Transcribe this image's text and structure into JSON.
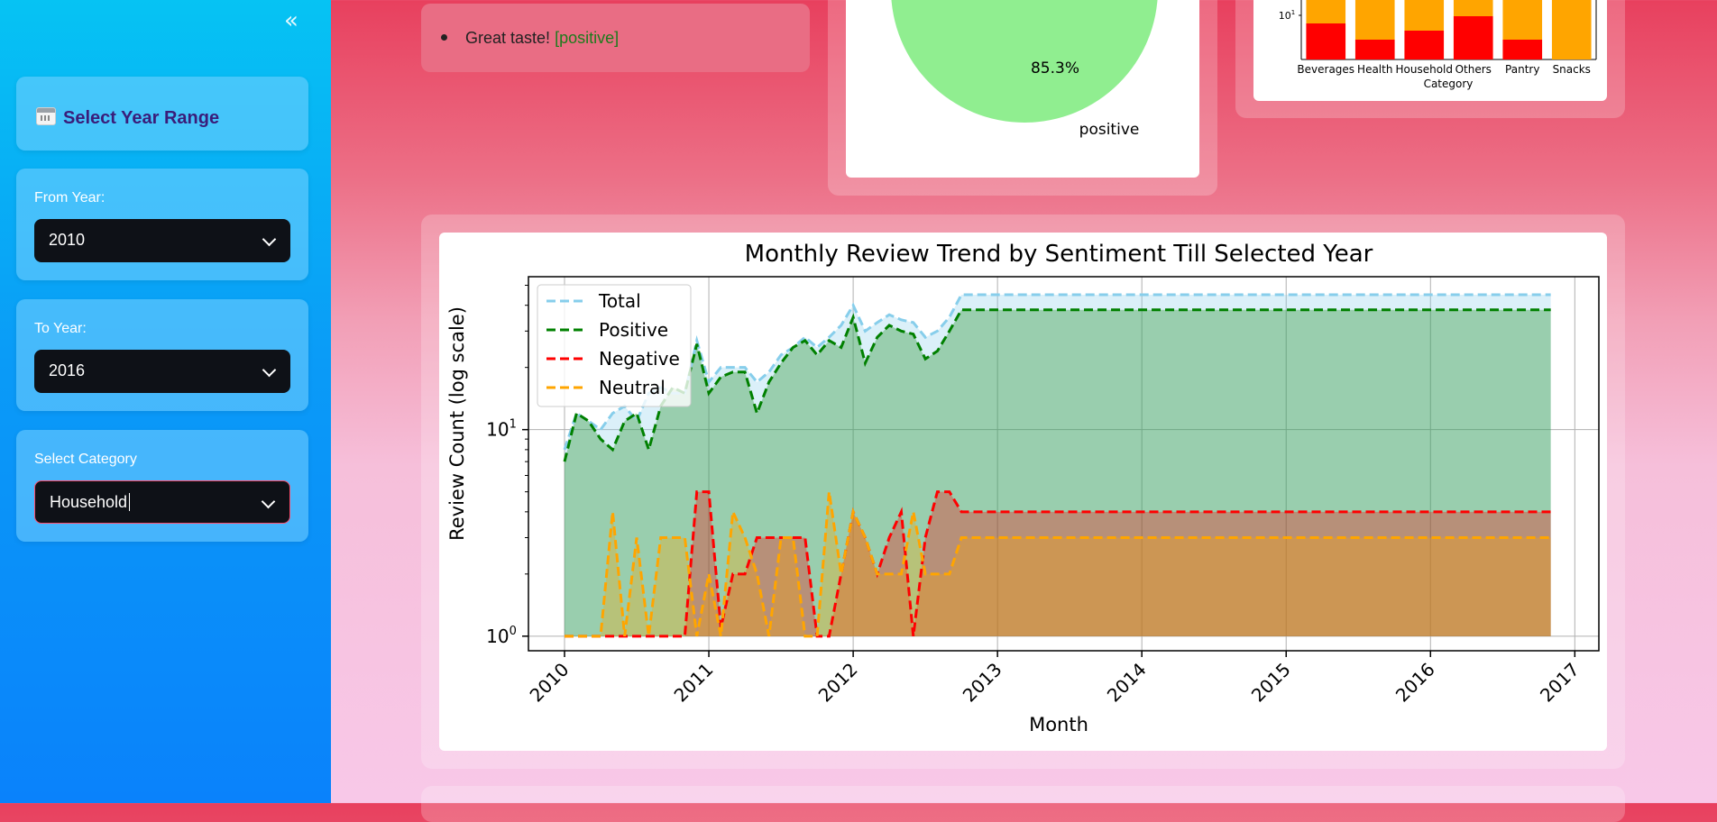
{
  "sidebar": {
    "collapse_icon": "double-chevron-left-icon",
    "section_title": "Select Year Range",
    "section_icon": "calendar-icon",
    "from_year": {
      "label": "From Year:",
      "value": "2010"
    },
    "to_year": {
      "label": "To Year:",
      "value": "2016"
    },
    "category": {
      "label": "Select Category",
      "value": "Household"
    }
  },
  "reviews": [
    {
      "text": "Great taste!",
      "sentiment": "[positive]"
    }
  ],
  "pie_partial": {
    "pct_label": "85.3%",
    "slice_label": "positive",
    "color": "#90ee90"
  },
  "bar_partial": {
    "categories": [
      "Beverages",
      "Health",
      "Household",
      "Others",
      "Pantry",
      "Snacks"
    ],
    "xlabel": "Category",
    "ytick": "10",
    "ytick_exp": "1"
  },
  "chart_data": {
    "type": "area",
    "title": "Monthly Review Trend by Sentiment Till Selected Year",
    "xlabel": "Month",
    "ylabel": "Review Count (log scale)",
    "yscale": "log",
    "ylim": [
      0.85,
      55
    ],
    "xlim": [
      "2009-10",
      "2017-03"
    ],
    "yticks": [
      {
        "base": "10",
        "exp": "0",
        "value": 1
      },
      {
        "base": "10",
        "exp": "1",
        "value": 10
      }
    ],
    "xticks": [
      "2010",
      "2011",
      "2012",
      "2013",
      "2014",
      "2015",
      "2016",
      "2017"
    ],
    "grid": true,
    "legend_position": "top-left",
    "series": [
      {
        "name": "Total",
        "color": "#87ceeb",
        "points": [
          [
            "2010-01",
            8
          ],
          [
            "2010-02",
            12
          ],
          [
            "2010-03",
            11
          ],
          [
            "2010-04",
            10
          ],
          [
            "2010-05",
            12
          ],
          [
            "2010-06",
            13
          ],
          [
            "2010-07",
            11
          ],
          [
            "2010-08",
            15
          ],
          [
            "2010-09",
            16
          ],
          [
            "2010-10",
            15
          ],
          [
            "2010-11",
            15
          ],
          [
            "2010-12",
            27
          ],
          [
            "2011-01",
            17
          ],
          [
            "2011-02",
            20
          ],
          [
            "2011-03",
            20
          ],
          [
            "2011-04",
            20
          ],
          [
            "2011-05",
            17
          ],
          [
            "2011-06",
            19
          ],
          [
            "2011-07",
            23
          ],
          [
            "2011-08",
            25
          ],
          [
            "2011-09",
            28
          ],
          [
            "2011-10",
            25
          ],
          [
            "2011-11",
            28
          ],
          [
            "2011-12",
            32
          ],
          [
            "2012-01",
            40
          ],
          [
            "2012-02",
            30
          ],
          [
            "2012-03",
            33
          ],
          [
            "2012-04",
            36
          ],
          [
            "2012-05",
            34
          ],
          [
            "2012-06",
            33
          ],
          [
            "2012-07",
            28
          ],
          [
            "2012-08",
            30
          ],
          [
            "2012-09",
            35
          ],
          [
            "2012-10",
            45
          ],
          [
            "2012-11",
            45
          ],
          [
            "2016-11",
            45
          ]
        ]
      },
      {
        "name": "Positive",
        "color": "#008000",
        "points": [
          [
            "2010-01",
            7
          ],
          [
            "2010-02",
            12
          ],
          [
            "2010-03",
            11
          ],
          [
            "2010-04",
            9
          ],
          [
            "2010-05",
            8
          ],
          [
            "2010-06",
            11
          ],
          [
            "2010-07",
            12
          ],
          [
            "2010-08",
            8
          ],
          [
            "2010-09",
            13
          ],
          [
            "2010-10",
            16
          ],
          [
            "2010-11",
            15
          ],
          [
            "2010-12",
            26
          ],
          [
            "2011-01",
            15
          ],
          [
            "2011-02",
            18
          ],
          [
            "2011-03",
            19
          ],
          [
            "2011-04",
            19
          ],
          [
            "2011-05",
            12
          ],
          [
            "2011-06",
            17
          ],
          [
            "2011-07",
            21
          ],
          [
            "2011-08",
            25
          ],
          [
            "2011-09",
            27
          ],
          [
            "2011-10",
            23
          ],
          [
            "2011-11",
            27
          ],
          [
            "2011-12",
            25
          ],
          [
            "2012-01",
            35
          ],
          [
            "2012-02",
            21
          ],
          [
            "2012-03",
            28
          ],
          [
            "2012-04",
            32
          ],
          [
            "2012-05",
            30
          ],
          [
            "2012-06",
            29
          ],
          [
            "2012-07",
            22
          ],
          [
            "2012-08",
            24
          ],
          [
            "2012-09",
            30
          ],
          [
            "2012-10",
            38
          ],
          [
            "2012-11",
            38
          ],
          [
            "2016-11",
            38
          ]
        ]
      },
      {
        "name": "Negative",
        "color": "#ff0000",
        "points": [
          [
            "2010-01",
            1
          ],
          [
            "2010-02",
            1
          ],
          [
            "2010-03",
            1
          ],
          [
            "2010-04",
            1
          ],
          [
            "2010-05",
            1
          ],
          [
            "2010-06",
            1
          ],
          [
            "2010-07",
            1
          ],
          [
            "2010-08",
            1
          ],
          [
            "2010-09",
            1
          ],
          [
            "2010-10",
            1
          ],
          [
            "2010-11",
            1
          ],
          [
            "2010-12",
            5
          ],
          [
            "2011-01",
            5
          ],
          [
            "2011-02",
            1.1
          ],
          [
            "2011-03",
            2
          ],
          [
            "2011-04",
            2
          ],
          [
            "2011-05",
            3
          ],
          [
            "2011-06",
            3
          ],
          [
            "2011-07",
            3
          ],
          [
            "2011-08",
            3
          ],
          [
            "2011-09",
            3
          ],
          [
            "2011-10",
            1
          ],
          [
            "2011-11",
            1
          ],
          [
            "2011-12",
            2
          ],
          [
            "2012-01",
            4
          ],
          [
            "2012-02",
            3
          ],
          [
            "2012-03",
            2
          ],
          [
            "2012-04",
            3
          ],
          [
            "2012-05",
            4
          ],
          [
            "2012-06",
            1
          ],
          [
            "2012-07",
            3
          ],
          [
            "2012-08",
            5
          ],
          [
            "2012-09",
            5
          ],
          [
            "2012-10",
            4
          ],
          [
            "2012-11",
            4
          ],
          [
            "2016-11",
            4
          ]
        ]
      },
      {
        "name": "Neutral",
        "color": "#ffa500",
        "points": [
          [
            "2010-01",
            1
          ],
          [
            "2010-02",
            1
          ],
          [
            "2010-03",
            1
          ],
          [
            "2010-04",
            1
          ],
          [
            "2010-05",
            4
          ],
          [
            "2010-06",
            1
          ],
          [
            "2010-07",
            3
          ],
          [
            "2010-08",
            1
          ],
          [
            "2010-09",
            3
          ],
          [
            "2010-10",
            3
          ],
          [
            "2010-11",
            3
          ],
          [
            "2010-12",
            1
          ],
          [
            "2011-01",
            2
          ],
          [
            "2011-02",
            1
          ],
          [
            "2011-03",
            4
          ],
          [
            "2011-04",
            3
          ],
          [
            "2011-05",
            2
          ],
          [
            "2011-06",
            1
          ],
          [
            "2011-07",
            3
          ],
          [
            "2011-08",
            3
          ],
          [
            "2011-09",
            1
          ],
          [
            "2011-10",
            1
          ],
          [
            "2011-11",
            5
          ],
          [
            "2011-12",
            2
          ],
          [
            "2012-01",
            4
          ],
          [
            "2012-02",
            3
          ],
          [
            "2012-03",
            2
          ],
          [
            "2012-04",
            2
          ],
          [
            "2012-05",
            2
          ],
          [
            "2012-06",
            4
          ],
          [
            "2012-07",
            2
          ],
          [
            "2012-08",
            2
          ],
          [
            "2012-09",
            2
          ],
          [
            "2012-10",
            3
          ],
          [
            "2012-11",
            3
          ],
          [
            "2016-11",
            3
          ]
        ]
      }
    ]
  }
}
